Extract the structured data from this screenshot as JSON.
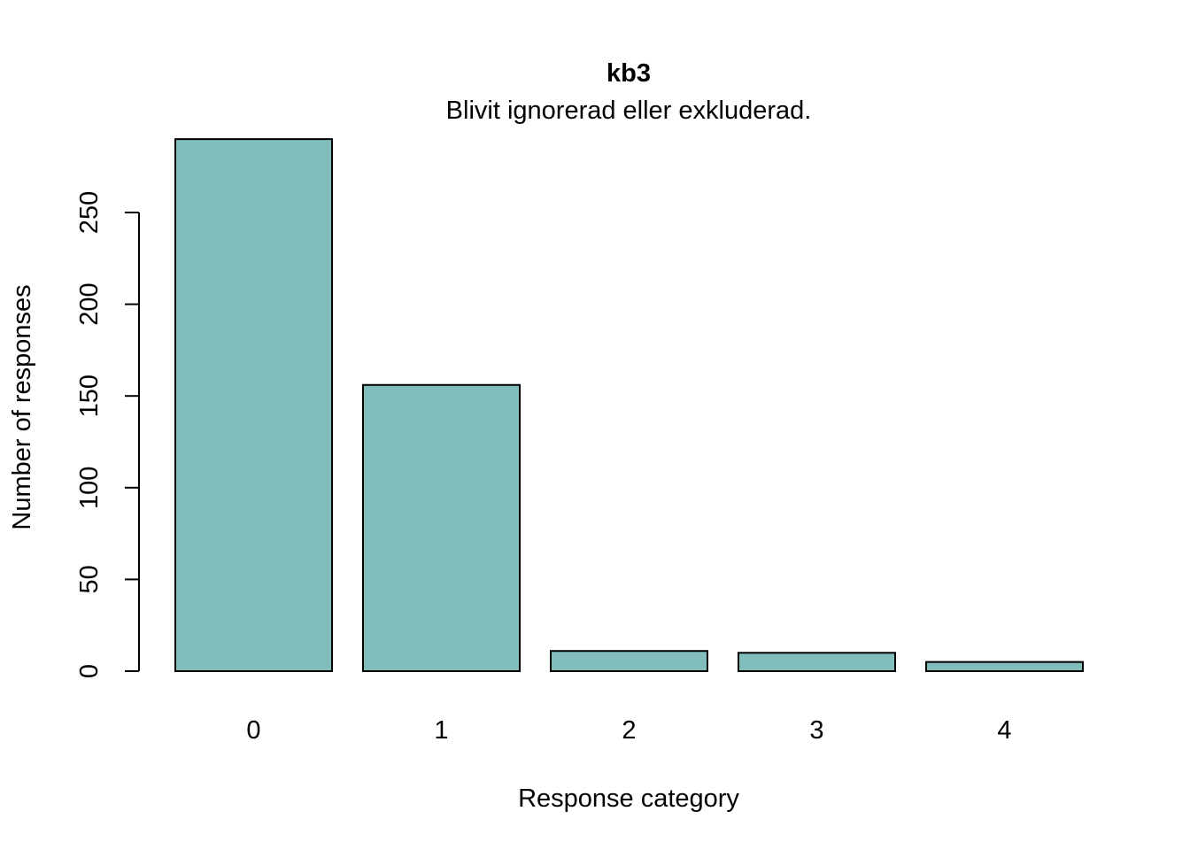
{
  "chart_data": {
    "type": "bar",
    "title": "kb3",
    "subtitle": "Blivit ignorerad eller exkluderad.",
    "xlabel": "Response category",
    "ylabel": "Number of responses",
    "categories": [
      "0",
      "1",
      "2",
      "3",
      "4"
    ],
    "values": [
      290,
      156,
      11,
      10,
      5
    ],
    "yticks": [
      0,
      50,
      100,
      150,
      200,
      250
    ],
    "ylim": [
      0,
      290
    ],
    "bar_color": "#80BDBB",
    "grid": false,
    "legend": "none"
  }
}
